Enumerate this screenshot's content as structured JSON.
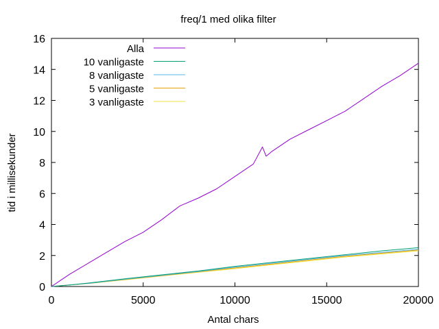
{
  "chart_data": {
    "type": "line",
    "title": "freq/1 med olika filter",
    "xlabel": "Antal chars",
    "ylabel": "tid i millisekunder",
    "xlim": [
      0,
      20000
    ],
    "ylim": [
      0,
      16
    ],
    "xticks": [
      "0",
      "5000",
      "10000",
      "15000",
      "20000"
    ],
    "yticks": [
      "0",
      "2",
      "4",
      "6",
      "8",
      "10",
      "12",
      "14",
      "16"
    ],
    "grid": false,
    "legend_position": "top-left",
    "series": [
      {
        "name": "Alla",
        "color": "#9400d3",
        "x": [
          0,
          500,
          1000,
          2000,
          3000,
          4000,
          5000,
          6000,
          7000,
          8000,
          9000,
          10000,
          11000,
          11500,
          11700,
          12000,
          13000,
          14000,
          15000,
          16000,
          17000,
          18000,
          19000,
          20000
        ],
        "y": [
          0.0,
          0.4,
          0.8,
          1.5,
          2.2,
          2.9,
          3.5,
          4.3,
          5.2,
          5.7,
          6.3,
          7.1,
          7.9,
          9.0,
          8.4,
          8.7,
          9.5,
          10.1,
          10.7,
          11.3,
          12.1,
          12.9,
          13.6,
          14.4
        ]
      },
      {
        "name": "10 vanligaste",
        "color": "#009e73",
        "x": [
          0,
          1000,
          2000,
          4000,
          6000,
          8000,
          10000,
          12000,
          14000,
          16000,
          18000,
          20000
        ],
        "y": [
          0.0,
          0.1,
          0.22,
          0.5,
          0.75,
          1.0,
          1.3,
          1.55,
          1.8,
          2.05,
          2.3,
          2.5
        ]
      },
      {
        "name": "8 vanligaste",
        "color": "#56b4e9",
        "x": [
          0,
          1000,
          2000,
          4000,
          6000,
          8000,
          10000,
          12000,
          14000,
          16000,
          18000,
          20000
        ],
        "y": [
          0.0,
          0.1,
          0.2,
          0.47,
          0.72,
          0.97,
          1.25,
          1.5,
          1.75,
          2.0,
          2.2,
          2.4
        ]
      },
      {
        "name": "5 vanligaste",
        "color": "#e69f00",
        "x": [
          0,
          1000,
          2000,
          4000,
          6000,
          8000,
          10000,
          12000,
          14000,
          16000,
          18000,
          20000
        ],
        "y": [
          0.0,
          0.1,
          0.2,
          0.45,
          0.7,
          0.95,
          1.2,
          1.45,
          1.7,
          1.95,
          2.15,
          2.35
        ]
      },
      {
        "name": "3 vanligaste",
        "color": "#f0e442",
        "x": [
          0,
          1000,
          2000,
          4000,
          6000,
          8000,
          10000,
          12000,
          14000,
          16000,
          18000,
          20000
        ],
        "y": [
          0.0,
          0.1,
          0.19,
          0.43,
          0.68,
          0.92,
          1.15,
          1.4,
          1.65,
          1.9,
          2.1,
          2.3
        ]
      }
    ]
  }
}
